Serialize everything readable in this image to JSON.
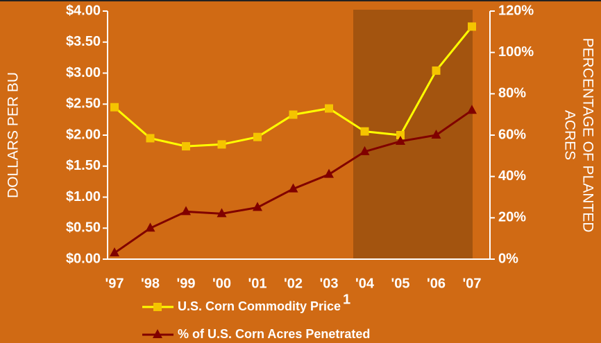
{
  "chart_data": {
    "type": "line",
    "categories": [
      "'97",
      "'98",
      "'99",
      "'00",
      "'01",
      "'02",
      "'03",
      "'04",
      "'05",
      "'06",
      "'07"
    ],
    "series": [
      {
        "name": "U.S. Corn Commodity Price",
        "color": "#ffff00",
        "marker_color": "#f5c400",
        "marker": "square",
        "values": [
          2.45,
          1.95,
          1.82,
          1.85,
          1.97,
          2.33,
          2.43,
          2.06,
          2.0,
          3.04,
          3.75
        ]
      },
      {
        "name": "% of U.S. Corn Acres Penetrated",
        "color": "#800000",
        "marker_color": "#800000",
        "marker": "triangle",
        "axis": "y2",
        "values": [
          3,
          15,
          23,
          22,
          25,
          34,
          41,
          52,
          57,
          60,
          72
        ]
      }
    ],
    "footnote_marker": "1",
    "ylabel": "DOLLARS PER BU",
    "y2label_lines": [
      "PERCENTAGE OF PLANTED",
      "ACRES"
    ],
    "ylim": [
      0,
      4
    ],
    "yticks": [
      {
        "value": 0,
        "label": "$0.00"
      },
      {
        "value": 0.5,
        "label": "$0.50"
      },
      {
        "value": 1,
        "label": "$1.00"
      },
      {
        "value": 1.5,
        "label": "$1.50"
      },
      {
        "value": 2,
        "label": "$2.00"
      },
      {
        "value": 2.5,
        "label": "$2.50"
      },
      {
        "value": 3,
        "label": "$3.00"
      },
      {
        "value": 3.5,
        "label": "$3.50"
      },
      {
        "value": 4,
        "label": "$4.00"
      }
    ],
    "y2lim": [
      0,
      120
    ],
    "y2ticks": [
      {
        "value": 0,
        "label": "0%"
      },
      {
        "value": 20,
        "label": "20%"
      },
      {
        "value": 40,
        "label": "40%"
      },
      {
        "value": 60,
        "label": "60%"
      },
      {
        "value": 80,
        "label": "80%"
      },
      {
        "value": 100,
        "label": "100%"
      },
      {
        "value": 120,
        "label": "120%"
      }
    ],
    "legend": "bottom"
  }
}
